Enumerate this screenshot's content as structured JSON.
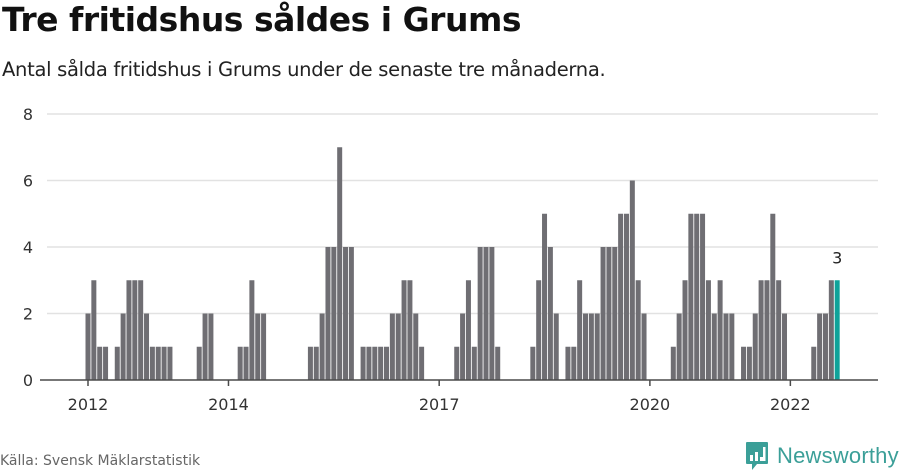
{
  "header": {
    "title": "Tre fritidshus såldes i Grums",
    "subtitle": "Antal sålda fritidshus i Grums under de senaste tre månaderna."
  },
  "footer": {
    "source": "Källa: Svensk Mäklarstatistik",
    "brand": "Newsworthy",
    "brand_icon": "newsworthy-logo-icon"
  },
  "colors": {
    "bar": "#6f6e73",
    "highlight": "#0fa39a",
    "grid": "#e2e2e2",
    "axis": "#4a4a4a",
    "brand": "#3b9f98"
  },
  "chart_data": {
    "type": "bar",
    "title": "Tre fritidshus såldes i Grums",
    "subtitle": "Antal sålda fritidshus i Grums under de senaste tre månaderna.",
    "xlabel": "",
    "ylabel": "",
    "ylim": [
      0,
      8
    ],
    "yticks": [
      0,
      2,
      4,
      6,
      8
    ],
    "xticks": [
      {
        "label": "2012",
        "index": 0
      },
      {
        "label": "2014",
        "index": 24
      },
      {
        "label": "2017",
        "index": 60
      },
      {
        "label": "2020",
        "index": 96
      },
      {
        "label": "2022",
        "index": 120
      }
    ],
    "grid": true,
    "legend": null,
    "start": "2012-01",
    "frequency": "monthly",
    "highlight_last": true,
    "annotation": {
      "text": "3",
      "index": 128
    },
    "series": [
      {
        "name": "Antal sålda fritidshus",
        "values": [
          2,
          3,
          1,
          1,
          0,
          1,
          2,
          3,
          3,
          3,
          2,
          1,
          1,
          1,
          1,
          0,
          0,
          0,
          0,
          1,
          2,
          2,
          0,
          0,
          0,
          0,
          1,
          1,
          3,
          2,
          2,
          0,
          0,
          0,
          0,
          0,
          0,
          0,
          1,
          1,
          2,
          4,
          4,
          7,
          4,
          4,
          0,
          1,
          1,
          1,
          1,
          1,
          2,
          2,
          3,
          3,
          2,
          1,
          0,
          0,
          0,
          0,
          0,
          1,
          2,
          3,
          1,
          4,
          4,
          4,
          1,
          0,
          0,
          0,
          0,
          0,
          1,
          3,
          5,
          4,
          2,
          0,
          1,
          1,
          3,
          2,
          2,
          2,
          4,
          4,
          4,
          5,
          5,
          6,
          3,
          2,
          0,
          0,
          0,
          0,
          1,
          2,
          3,
          5,
          5,
          5,
          3,
          2,
          3,
          2,
          2,
          0,
          1,
          1,
          2,
          3,
          3,
          5,
          3,
          2,
          0,
          0,
          0,
          0,
          1,
          2,
          2,
          3,
          3
        ]
      }
    ]
  }
}
